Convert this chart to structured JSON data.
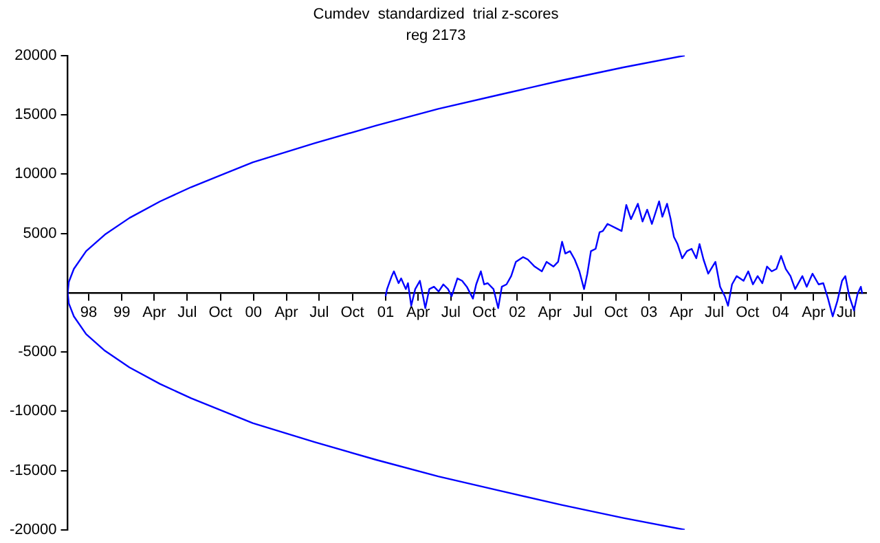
{
  "chart_data": {
    "type": "line",
    "title": "Cumdev  standardized  trial z-scores",
    "subtitle": "reg 2173",
    "marker": "none",
    "line_style": "solid",
    "xlim": [
      "1998-08-04",
      "2004-08-25"
    ],
    "xticks": [
      {
        "value": "1998-10-01",
        "label": "98"
      },
      {
        "value": "1999-01-01",
        "label": "99"
      },
      {
        "value": "1999-04-01",
        "label": "Apr"
      },
      {
        "value": "1999-07-01",
        "label": "Jul"
      },
      {
        "value": "1999-10-01",
        "label": "Oct"
      },
      {
        "value": "2000-01-01",
        "label": "00"
      },
      {
        "value": "2000-04-01",
        "label": "Apr"
      },
      {
        "value": "2000-07-01",
        "label": "Jul"
      },
      {
        "value": "2000-10-01",
        "label": "Oct"
      },
      {
        "value": "2001-01-01",
        "label": "01"
      },
      {
        "value": "2001-04-01",
        "label": "Apr"
      },
      {
        "value": "2001-07-01",
        "label": "Jul"
      },
      {
        "value": "2001-10-01",
        "label": "Oct"
      },
      {
        "value": "2002-01-01",
        "label": "02"
      },
      {
        "value": "2002-04-01",
        "label": "Apr"
      },
      {
        "value": "2002-07-01",
        "label": "Jul"
      },
      {
        "value": "2002-10-01",
        "label": "Oct"
      },
      {
        "value": "2003-01-01",
        "label": "03"
      },
      {
        "value": "2003-04-01",
        "label": "Apr"
      },
      {
        "value": "2003-07-01",
        "label": "Jul"
      },
      {
        "value": "2003-10-01",
        "label": "Oct"
      },
      {
        "value": "2004-01-01",
        "label": "04"
      },
      {
        "value": "2004-04-01",
        "label": "Apr"
      },
      {
        "value": "2004-07-01",
        "label": "Jul"
      }
    ],
    "ylim": [
      -20000,
      20000
    ],
    "yticks": [
      -20000,
      -15000,
      -10000,
      -5000,
      5000,
      10000,
      15000,
      20000
    ],
    "series": [
      {
        "color": "#0000ff",
        "x": [
          "2003-04-10",
          "2002-10-22",
          "2002-05-04",
          "2001-11-13",
          "2001-05-27",
          "2000-12-06",
          "2000-06-18",
          "1999-12-30",
          "1999-07-12",
          "1999-04-17",
          "1999-01-22",
          "1998-11-15",
          "1998-09-24",
          "1998-08-21",
          "1998-08-07",
          "1998-08-04",
          "1998-08-07",
          "1998-08-21",
          "1998-09-24",
          "1998-11-15",
          "1999-01-22",
          "1999-04-17",
          "1999-07-12",
          "1999-12-30",
          "2000-06-18",
          "2000-12-06",
          "2001-05-27",
          "2001-11-13",
          "2002-05-04",
          "2002-10-22",
          "2003-04-10"
        ],
        "values": [
          20000,
          19000,
          17900,
          16700,
          15500,
          14100,
          12600,
          11000,
          8900,
          7700,
          6300,
          4900,
          3500,
          2000,
          900,
          0,
          -900,
          -2000,
          -3500,
          -4900,
          -6300,
          -7700,
          -8900,
          -11000,
          -12600,
          -14100,
          -15500,
          -16700,
          -17900,
          -19000,
          -20000
        ]
      },
      {
        "color": "#0000ff",
        "x": [
          "2001-01-01",
          "2001-01-05",
          "2001-01-18",
          "2001-01-24",
          "2001-02-06",
          "2001-02-13",
          "2001-02-26",
          "2001-03-04",
          "2001-03-13",
          "2001-03-24",
          "2001-04-06",
          "2001-04-12",
          "2001-04-21",
          "2001-05-02",
          "2001-05-15",
          "2001-05-28",
          "2001-06-10",
          "2001-06-23",
          "2001-07-03",
          "2001-07-19",
          "2001-08-01",
          "2001-08-14",
          "2001-08-31",
          "2001-09-09",
          "2001-09-22",
          "2001-10-01",
          "2001-10-11",
          "2001-10-27",
          "2001-11-09",
          "2001-11-19",
          "2001-12-02",
          "2001-12-15",
          "2001-12-28",
          "2002-01-17",
          "2002-01-30",
          "2002-02-18",
          "2002-03-10",
          "2002-03-23",
          "2002-04-11",
          "2002-04-24",
          "2002-05-05",
          "2002-05-14",
          "2002-05-27",
          "2002-06-09",
          "2002-06-22",
          "2002-07-05",
          "2002-07-14",
          "2002-07-24",
          "2002-08-06",
          "2002-08-17",
          "2002-08-26",
          "2002-09-08",
          "2002-10-04",
          "2002-10-17",
          "2002-10-30",
          "2002-11-12",
          "2002-12-01",
          "2002-12-14",
          "2002-12-27",
          "2003-01-09",
          "2003-01-29",
          "2003-02-07",
          "2003-02-20",
          "2003-03-02",
          "2003-03-11",
          "2003-03-21",
          "2003-04-03",
          "2003-04-16",
          "2003-04-29",
          "2003-05-12",
          "2003-05-21",
          "2003-06-01",
          "2003-06-14",
          "2003-07-04",
          "2003-07-17",
          "2003-07-30",
          "2003-08-08",
          "2003-08-19",
          "2003-09-01",
          "2003-09-20",
          "2003-10-03",
          "2003-10-16",
          "2003-10-29",
          "2003-11-11",
          "2003-11-24",
          "2003-12-07",
          "2003-12-20",
          "2004-01-02",
          "2004-01-15",
          "2004-01-28",
          "2004-02-10",
          "2004-03-01",
          "2004-03-13",
          "2004-03-29",
          "2004-04-15",
          "2004-04-28",
          "2004-05-11",
          "2004-05-24",
          "2004-06-06",
          "2004-06-19",
          "2004-06-28",
          "2004-07-09",
          "2004-07-22",
          "2004-08-01",
          "2004-08-10",
          "2004-08-14"
        ],
        "values": [
          -300,
          300,
          1400,
          1800,
          800,
          1200,
          300,
          800,
          -1100,
          300,
          1000,
          100,
          -1300,
          300,
          500,
          100,
          700,
          300,
          -300,
          1200,
          1000,
          500,
          -500,
          700,
          1800,
          700,
          800,
          300,
          -1300,
          500,
          700,
          1400,
          2600,
          3000,
          2800,
          2200,
          1800,
          2600,
          2200,
          2600,
          4300,
          3300,
          3500,
          2800,
          1800,
          300,
          1600,
          3500,
          3700,
          5100,
          5200,
          5800,
          5400,
          5200,
          7400,
          6200,
          7500,
          6000,
          7000,
          5800,
          7700,
          6400,
          7500,
          6200,
          4700,
          4100,
          2900,
          3500,
          3700,
          2900,
          4100,
          2800,
          1600,
          2600,
          500,
          -300,
          -1100,
          700,
          1400,
          1000,
          1800,
          700,
          1400,
          800,
          2200,
          1800,
          2000,
          3100,
          2000,
          1400,
          300,
          1400,
          500,
          1600,
          700,
          800,
          -500,
          -2000,
          -700,
          1000,
          1400,
          -300,
          -1500,
          -100,
          500,
          -100
        ]
      }
    ]
  }
}
